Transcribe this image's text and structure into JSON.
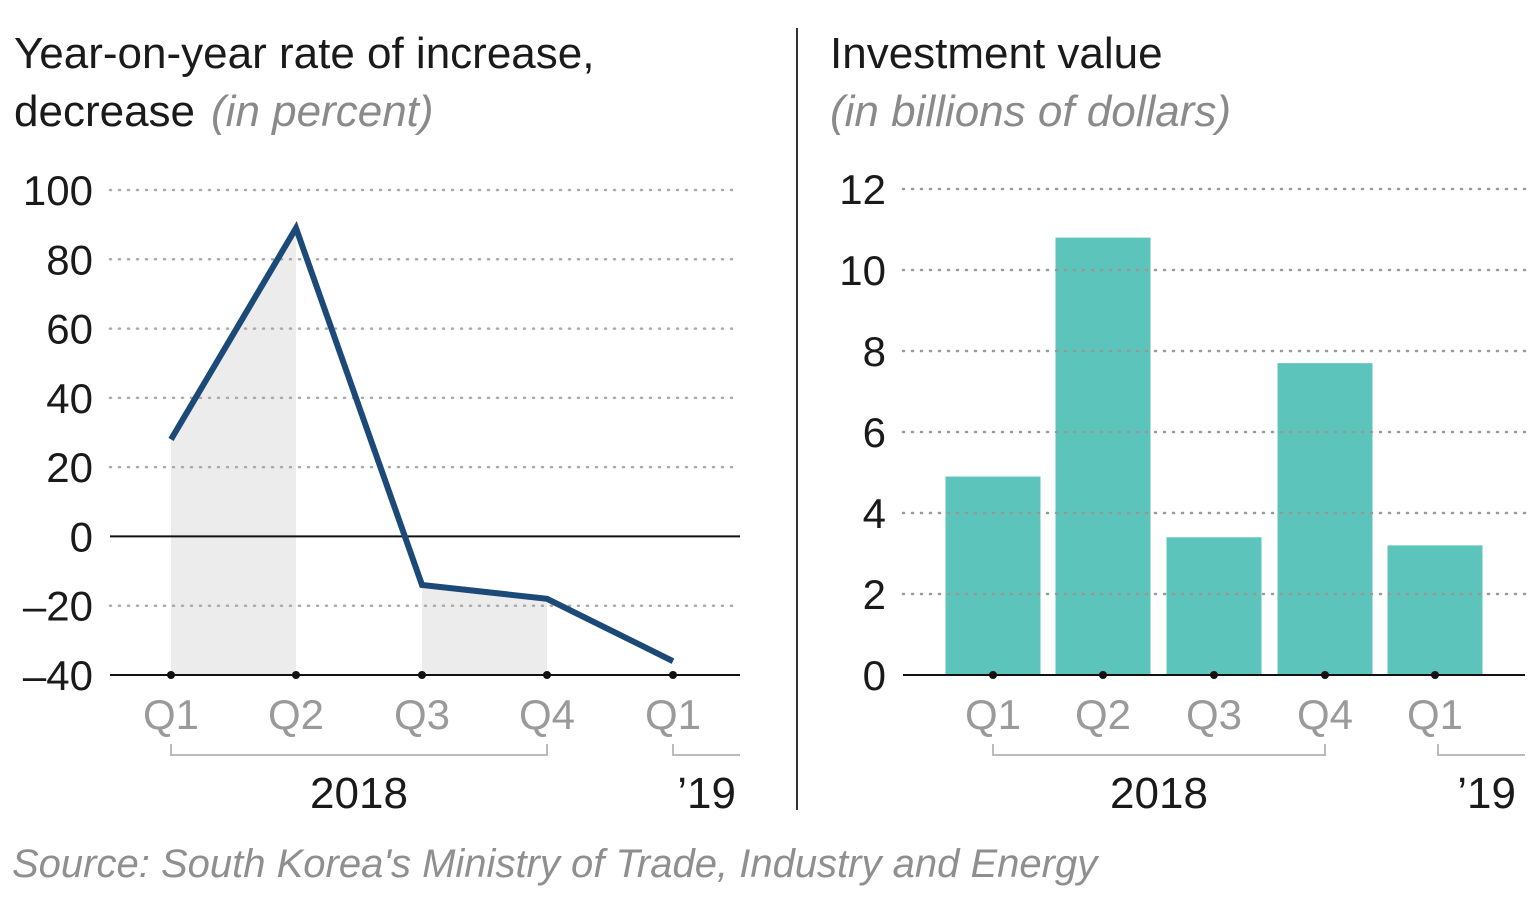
{
  "chart_data": [
    {
      "type": "line",
      "title": "Year-on-year rate of increase,",
      "title_line2": "decrease",
      "subtitle": "(in percent)",
      "categories": [
        "Q1",
        "Q2",
        "Q3",
        "Q4",
        "Q1"
      ],
      "groups": [
        "2018",
        "’19"
      ],
      "values": [
        28,
        89,
        -14,
        -18,
        -36
      ],
      "ylim": [
        -40,
        100
      ],
      "yticks": [
        "100",
        "80",
        "60",
        "40",
        "20",
        "0",
        "–20",
        "–40"
      ],
      "ytick_values": [
        100,
        80,
        60,
        40,
        20,
        0,
        -20,
        -40
      ],
      "shaded_ranges": [
        [
          0,
          1
        ],
        [
          2,
          3
        ]
      ],
      "grid": true,
      "line_color": "#1c4a78",
      "shade_color": "#ececec"
    },
    {
      "type": "bar",
      "title": "Investment value",
      "subtitle": "(in billions of dollars)",
      "categories": [
        "Q1",
        "Q2",
        "Q3",
        "Q4",
        "Q1"
      ],
      "groups": [
        "2018",
        "’19"
      ],
      "values": [
        4.9,
        10.8,
        3.4,
        7.7,
        3.2
      ],
      "ylim": [
        0,
        12
      ],
      "yticks": [
        "12",
        "10",
        "8",
        "6",
        "4",
        "2",
        "0"
      ],
      "ytick_values": [
        12,
        10,
        8,
        6,
        4,
        2,
        0
      ],
      "grid": true,
      "bar_color": "#5cc4bb"
    }
  ],
  "source": "Source: South Korea's Ministry of Trade, Industry and Energy"
}
